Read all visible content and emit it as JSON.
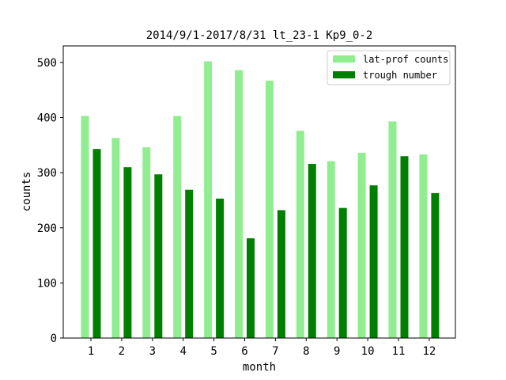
{
  "chart_data": {
    "type": "bar",
    "title": "2014/9/1-2017/8/31  lt_23-1  Kp9_0-2",
    "xlabel": "month",
    "ylabel": "counts",
    "categories": [
      "1",
      "2",
      "3",
      "4",
      "5",
      "6",
      "7",
      "8",
      "9",
      "10",
      "11",
      "12"
    ],
    "ylim": [
      0,
      530
    ],
    "yticks": [
      0,
      100,
      200,
      300,
      400,
      500
    ],
    "grid": false,
    "legend_position": "top-right",
    "series": [
      {
        "name": "lat-prof counts",
        "color": "#90ee90",
        "values": [
          403,
          363,
          346,
          403,
          502,
          486,
          467,
          376,
          321,
          336,
          393,
          333
        ]
      },
      {
        "name": "trough number",
        "color": "#008000",
        "values": [
          343,
          310,
          297,
          269,
          253,
          181,
          232,
          316,
          236,
          277,
          330,
          263
        ]
      }
    ]
  }
}
